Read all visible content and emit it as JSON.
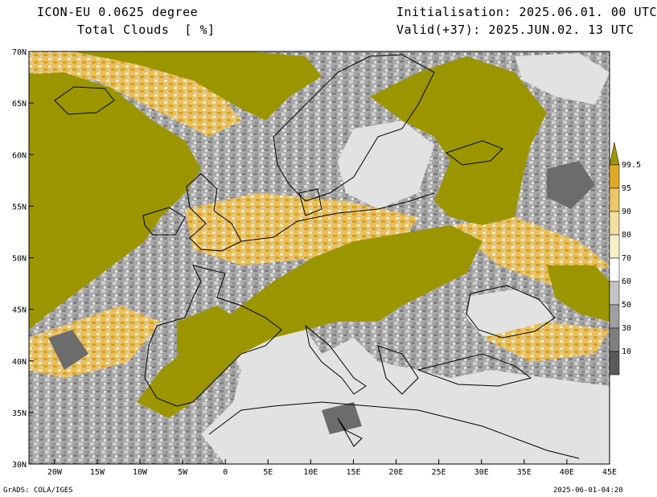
{
  "header": {
    "model": "ICON-EU 0.0625 degree",
    "variable": "Total Clouds  [ %]",
    "init": "Initialisation: 2025.06.01. 00 UTC",
    "valid": "Valid(+37): 2025.JUN.02. 13 UTC"
  },
  "footer": {
    "credit": "GrADS: COLA/IGES",
    "stamp": "2025-06-01-04:20"
  },
  "axes": {
    "lon_labels": [
      "20W",
      "15W",
      "10W",
      "5W",
      "0",
      "5E",
      "10E",
      "15E",
      "20E",
      "25E",
      "30E",
      "35E",
      "40E",
      "45E"
    ],
    "lon_values": [
      -20,
      -15,
      -10,
      -5,
      0,
      5,
      10,
      15,
      20,
      25,
      30,
      35,
      40,
      45
    ],
    "lat_labels": [
      "70N",
      "65N",
      "60N",
      "55N",
      "50N",
      "45N",
      "40N",
      "35N",
      "30N"
    ],
    "lat_values": [
      70,
      65,
      60,
      55,
      50,
      45,
      40,
      35,
      30
    ],
    "lon_range": [
      -23,
      45
    ],
    "lat_range": [
      30,
      70
    ]
  },
  "legend": {
    "levels": [
      "99.5",
      "95",
      "90",
      "80",
      "70",
      "60",
      "50",
      "30",
      "10"
    ],
    "colors": [
      "#9b9600",
      "#e0a828",
      "#ebc66a",
      "#f1dea0",
      "#f5f0c8",
      "#ffffff",
      "#c4c4c4",
      "#9f9f9f",
      "#7f7f7f",
      "#5a5a5a"
    ]
  },
  "colors": {
    "overcast": "#9b9600",
    "clear": "#e2e2e2",
    "coast": "#000000"
  }
}
